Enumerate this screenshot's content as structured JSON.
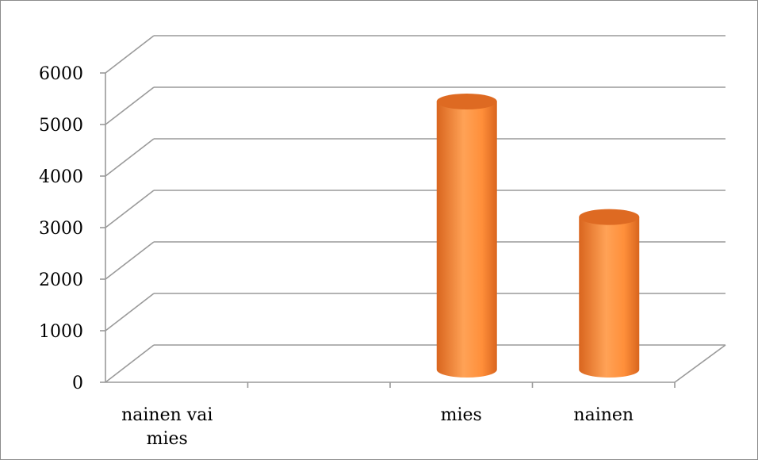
{
  "chart_data": {
    "type": "bar",
    "categories": [
      "nainen vai mies",
      "mies",
      "nainen"
    ],
    "category_lines": [
      [
        "nainen vai",
        "mies"
      ],
      [
        "mies"
      ],
      [
        "nainen"
      ]
    ],
    "values": [
      0,
      5200,
      2960
    ],
    "ylim": [
      0,
      6000
    ],
    "yticks": [
      0,
      1000,
      2000,
      3000,
      4000,
      5000,
      6000
    ],
    "grid": true,
    "legend": "none",
    "title": "",
    "xlabel": "",
    "ylabel": "",
    "bar_shape": "3d-cylinder",
    "colors": {
      "bar_mid": "#ff8f3a",
      "bar_light": "#ffa256",
      "bar_edge": "#d9651e",
      "bar_top": "#de6a22",
      "grid": "#9a9a9a",
      "border": "#8c8c8c"
    }
  }
}
